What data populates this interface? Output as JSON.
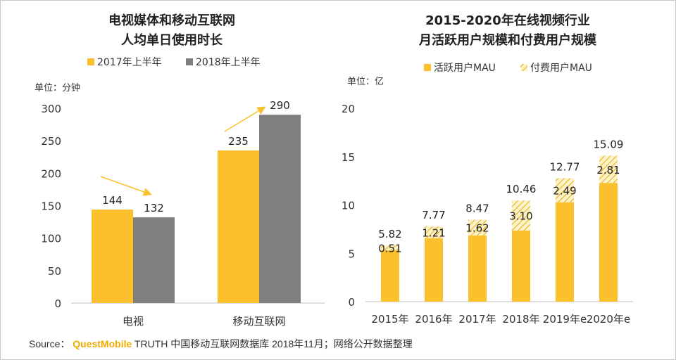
{
  "colors": {
    "yellow": "#fbc02d",
    "gray": "#7f7f7f",
    "accent_arrow": "#fbc02d",
    "text": "#222222"
  },
  "chart_data": [
    {
      "type": "bar",
      "title_line1": "电视媒体和移动互联网",
      "title_line2": "人均单日使用时长",
      "unit": "单位：分钟",
      "categories": [
        "电视",
        "移动互联网"
      ],
      "series": [
        {
          "name": "2017年上半年",
          "color": "#fbc02d",
          "values": [
            144,
            235
          ]
        },
        {
          "name": "2018年上半年",
          "color": "#7f7f7f",
          "values": [
            132,
            290
          ]
        }
      ],
      "ylim": [
        0,
        300
      ],
      "yticks": [
        "0",
        "50",
        "100",
        "150",
        "200",
        "250",
        "300"
      ],
      "legend": "top"
    },
    {
      "type": "bar",
      "stacked": true,
      "title_line1": "2015-2020年在线视频行业",
      "title_line2": "月活跃用户规模和付费用户规模",
      "unit": "单位：亿",
      "categories": [
        "2015年",
        "2016年",
        "2017年",
        "2018年",
        "2019年e",
        "2020年e"
      ],
      "series": [
        {
          "name": "活跃用户MAU",
          "color": "#fbc02d",
          "pattern": "solid"
        },
        {
          "name": "付费用户MAU",
          "color": "#fbc02d",
          "pattern": "hatched"
        }
      ],
      "totals": [
        5.82,
        7.77,
        8.47,
        10.46,
        12.77,
        15.09
      ],
      "paid": [
        0.51,
        1.21,
        1.62,
        3.1,
        2.49,
        2.81
      ],
      "total_labels": [
        "5.82",
        "7.77",
        "8.47",
        "10.46",
        "12.77",
        "15.09"
      ],
      "paid_labels": [
        "0.51",
        "1.21",
        "1.62",
        "3.10",
        "2.49",
        "2.81"
      ],
      "ylim": [
        0,
        20
      ],
      "yticks": [
        "0",
        "5",
        "10",
        "15",
        "20"
      ],
      "legend": "top"
    }
  ],
  "footer": {
    "source_label": "Source：",
    "brand": "QuestMobile",
    "text": "TRUTH 中国移动互联网数据库 2018年11月；网络公开数据整理"
  }
}
